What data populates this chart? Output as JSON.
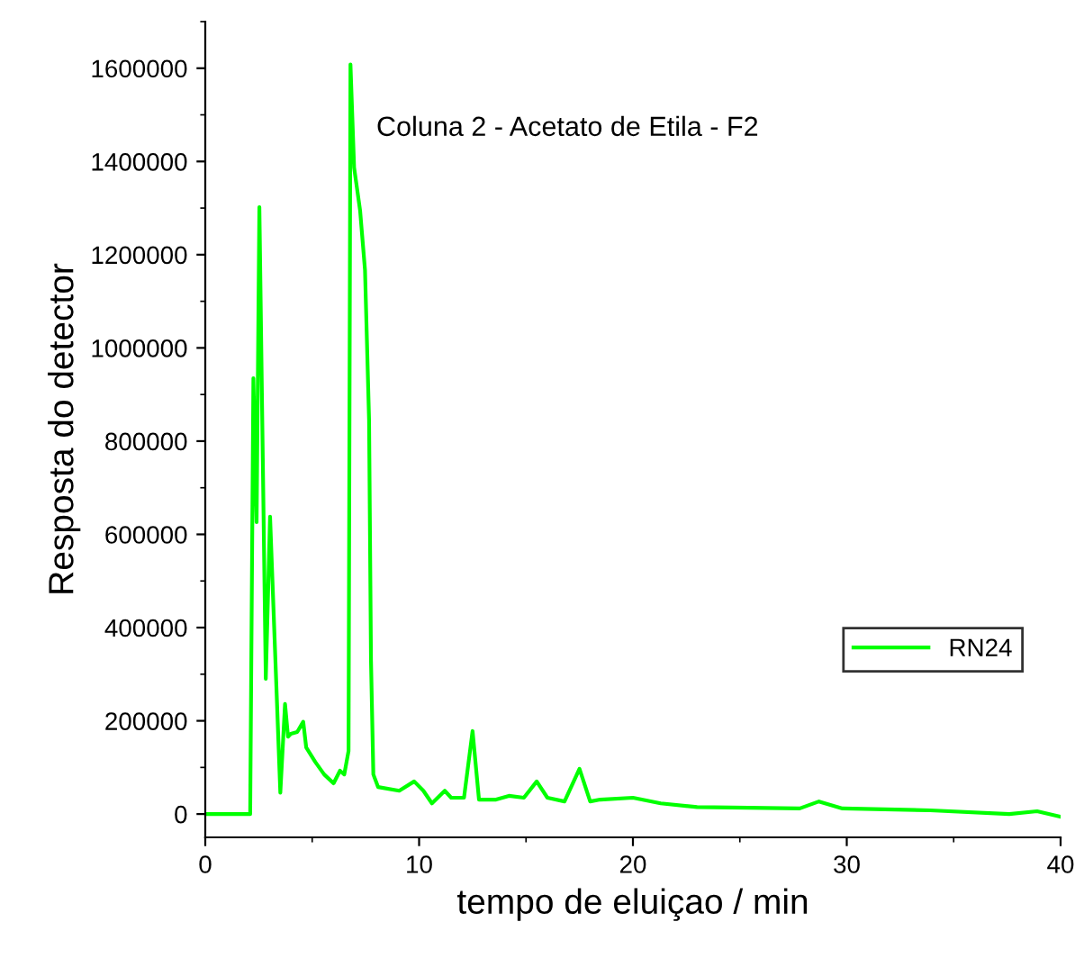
{
  "chart_data": {
    "type": "line",
    "xlabel": "tempo de eluiçao / min",
    "ylabel": "Resposta do detector",
    "annotations": [
      "Coluna 2 - Acetato de Etila - F2"
    ],
    "xlim": [
      0,
      40
    ],
    "xticks": [
      0,
      10,
      20,
      30,
      40
    ],
    "ylim": [
      -50000,
      1700000
    ],
    "yticks": [
      0,
      200000,
      400000,
      600000,
      800000,
      1000000,
      1200000,
      1400000,
      1600000
    ],
    "grid": false,
    "legend": "right",
    "marker": "none",
    "line_style": "solid",
    "series": [
      {
        "name": "RN24",
        "color": "#00ff00",
        "x": [
          0,
          2.1,
          2.25,
          2.4,
          2.53,
          2.83,
          3.03,
          3.51,
          3.73,
          3.87,
          4.0,
          4.3,
          4.58,
          4.72,
          5.14,
          5.56,
          6.0,
          6.3,
          6.5,
          6.7,
          6.79,
          6.96,
          7.24,
          7.47,
          7.66,
          7.75,
          7.86,
          8.08,
          9.07,
          9.77,
          10.2,
          10.6,
          11.2,
          11.5,
          12.1,
          12.5,
          12.8,
          13.6,
          14.2,
          14.9,
          15.5,
          16.0,
          16.8,
          17.5,
          18.0,
          18.47,
          20.0,
          21.3,
          23.0,
          27.8,
          28.7,
          29.8,
          33.9,
          37.6,
          38.9,
          40.0
        ],
        "values": [
          0,
          0,
          935000,
          626000,
          1302000,
          290000,
          638000,
          46000,
          236000,
          166000,
          172000,
          176000,
          198000,
          143000,
          112000,
          85000,
          66000,
          93000,
          85000,
          135000,
          1608000,
          1387000,
          1295000,
          1167000,
          846000,
          329000,
          85000,
          58000,
          50000,
          70000,
          50000,
          23000,
          50000,
          35000,
          35000,
          178000,
          31000,
          31000,
          39000,
          35000,
          70000,
          35000,
          27000,
          97000,
          27000,
          31000,
          35000,
          23000,
          15000,
          12000,
          27000,
          12000,
          8000,
          0,
          6000,
          -6000
        ]
      }
    ]
  }
}
